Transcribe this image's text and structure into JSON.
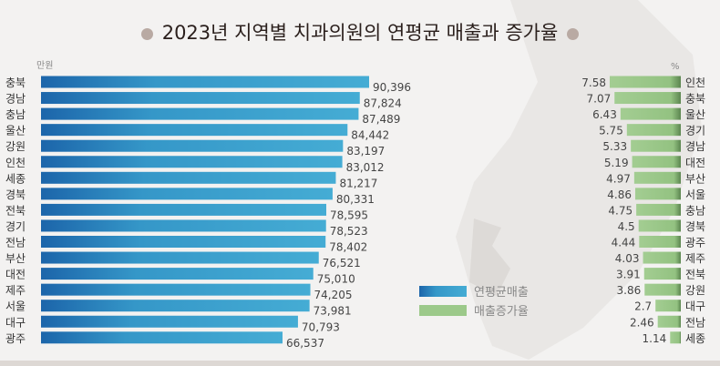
{
  "title": "2023년 지역별 치과의원의 연평균 매출과 증가율",
  "colors": {
    "revenue": "#3aa3cf",
    "revenue_dark": "#1c65aa",
    "growth": "#9cc98a",
    "growth_dark": "#5f8a52",
    "title_dot": "#b9aaa3"
  },
  "chart_data": [
    {
      "type": "bar",
      "orientation": "horizontal",
      "unit": "만원",
      "legend_label": "연평균매출",
      "categories": [
        "충북",
        "경남",
        "충남",
        "울산",
        "강원",
        "인천",
        "세종",
        "경북",
        "전북",
        "경기",
        "전남",
        "부산",
        "대전",
        "제주",
        "서울",
        "대구",
        "광주"
      ],
      "values": [
        90396,
        87824,
        87489,
        84442,
        83197,
        83012,
        81217,
        80331,
        78595,
        78523,
        78402,
        76521,
        75010,
        74205,
        73981,
        70793,
        66537
      ],
      "value_labels": [
        "90,396",
        "87,824",
        "87,489",
        "84,442",
        "83,197",
        "83,012",
        "81,217",
        "80,331",
        "78,595",
        "78,523",
        "78,402",
        "76,521",
        "75,010",
        "74,205",
        "73,981",
        "70,793",
        "66,537"
      ],
      "xlim": [
        0,
        90396
      ]
    },
    {
      "type": "bar",
      "orientation": "horizontal",
      "unit": "%",
      "legend_label": "매출증가율",
      "categories": [
        "인천",
        "충북",
        "울산",
        "경기",
        "경남",
        "대전",
        "부산",
        "서울",
        "충남",
        "경북",
        "광주",
        "제주",
        "전북",
        "강원",
        "대구",
        "전남",
        "세종"
      ],
      "values": [
        7.58,
        7.07,
        6.43,
        5.75,
        5.33,
        5.19,
        4.97,
        4.86,
        4.75,
        4.5,
        4.44,
        4.03,
        3.91,
        3.86,
        2.7,
        2.46,
        1.14
      ],
      "value_labels": [
        "7.58",
        "7.07",
        "6.43",
        "5.75",
        "5.33",
        "5.19",
        "4.97",
        "4.86",
        "4.75",
        "4.5",
        "4.44",
        "4.03",
        "3.91",
        "3.86",
        "2.7",
        "2.46",
        "1.14"
      ],
      "xlim": [
        0,
        7.58
      ]
    }
  ]
}
